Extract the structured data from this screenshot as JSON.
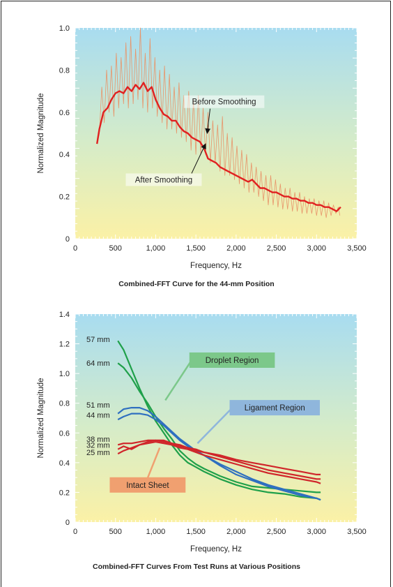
{
  "chart_data": [
    {
      "type": "line",
      "title": "Combined-FFT Curve for the 44-mm Position",
      "xlabel": "Frequency, Hz",
      "ylabel": "Normalized Magnitude",
      "xlim": [
        0,
        3500
      ],
      "ylim": [
        0,
        1.0
      ],
      "xticks": [
        "0",
        "500",
        "1,000",
        "1,500",
        "2,000",
        "2,500",
        "3,000",
        "3,500"
      ],
      "xtick_values": [
        0,
        500,
        1000,
        1500,
        2000,
        2500,
        3000,
        3500
      ],
      "yticks": [
        "0",
        "0.2",
        "0.4",
        "0.6",
        "0.8",
        "1.0"
      ],
      "ytick_values": [
        0,
        0.2,
        0.4,
        0.6,
        0.8,
        1.0
      ],
      "background": "gradient",
      "grid": false,
      "series": [
        {
          "name": "Before Smoothing",
          "color": "#e8956a",
          "x": [
            270,
            300,
            330,
            360,
            390,
            420,
            450,
            480,
            510,
            540,
            570,
            600,
            630,
            660,
            690,
            720,
            750,
            780,
            810,
            840,
            870,
            900,
            930,
            960,
            990,
            1020,
            1050,
            1080,
            1110,
            1140,
            1170,
            1200,
            1230,
            1260,
            1290,
            1320,
            1350,
            1380,
            1410,
            1440,
            1470,
            1500,
            1530,
            1560,
            1590,
            1620,
            1650,
            1680,
            1710,
            1740,
            1770,
            1800,
            1830,
            1860,
            1890,
            1920,
            1950,
            1980,
            2010,
            2040,
            2070,
            2100,
            2130,
            2160,
            2190,
            2220,
            2250,
            2280,
            2310,
            2340,
            2370,
            2400,
            2430,
            2460,
            2490,
            2520,
            2550,
            2580,
            2610,
            2640,
            2670,
            2700,
            2730,
            2760,
            2790,
            2820,
            2850,
            2880,
            2910,
            2940,
            2970,
            3000,
            3030,
            3060,
            3090,
            3120,
            3150,
            3180,
            3210,
            3240,
            3270,
            3290
          ],
          "y": [
            0.45,
            0.5,
            0.72,
            0.55,
            0.8,
            0.6,
            0.82,
            0.58,
            0.88,
            0.62,
            0.86,
            0.64,
            0.93,
            0.62,
            0.96,
            0.64,
            0.9,
            0.66,
            1.0,
            0.62,
            0.88,
            0.6,
            0.95,
            0.62,
            0.86,
            0.58,
            0.8,
            0.55,
            0.82,
            0.52,
            0.78,
            0.52,
            0.72,
            0.5,
            0.74,
            0.48,
            0.68,
            0.46,
            0.7,
            0.42,
            0.66,
            0.4,
            0.68,
            0.4,
            0.62,
            0.4,
            0.6,
            0.36,
            0.56,
            0.36,
            0.54,
            0.32,
            0.58,
            0.3,
            0.5,
            0.3,
            0.48,
            0.28,
            0.44,
            0.26,
            0.42,
            0.24,
            0.4,
            0.22,
            0.36,
            0.22,
            0.34,
            0.2,
            0.32,
            0.18,
            0.3,
            0.16,
            0.3,
            0.16,
            0.28,
            0.15,
            0.26,
            0.14,
            0.24,
            0.14,
            0.24,
            0.13,
            0.22,
            0.13,
            0.22,
            0.12,
            0.2,
            0.12,
            0.19,
            0.12,
            0.19,
            0.11,
            0.18,
            0.11,
            0.18,
            0.1,
            0.17,
            0.11,
            0.16,
            0.12,
            0.15,
            0.11
          ]
        },
        {
          "name": "After Smoothing",
          "color": "#e02020",
          "x": [
            270,
            300,
            350,
            400,
            450,
            500,
            550,
            600,
            650,
            700,
            750,
            800,
            850,
            900,
            950,
            1000,
            1050,
            1100,
            1150,
            1200,
            1250,
            1300,
            1350,
            1400,
            1450,
            1500,
            1550,
            1600,
            1650,
            1700,
            1750,
            1800,
            1850,
            1900,
            1950,
            2000,
            2050,
            2100,
            2150,
            2200,
            2250,
            2300,
            2350,
            2400,
            2450,
            2500,
            2550,
            2600,
            2650,
            2700,
            2750,
            2800,
            2850,
            2900,
            2950,
            3000,
            3050,
            3100,
            3150,
            3200,
            3250,
            3300
          ],
          "y": [
            0.45,
            0.52,
            0.6,
            0.62,
            0.66,
            0.69,
            0.7,
            0.69,
            0.72,
            0.7,
            0.73,
            0.71,
            0.74,
            0.7,
            0.72,
            0.66,
            0.62,
            0.59,
            0.58,
            0.56,
            0.56,
            0.53,
            0.51,
            0.5,
            0.48,
            0.47,
            0.46,
            0.43,
            0.38,
            0.37,
            0.36,
            0.34,
            0.33,
            0.32,
            0.31,
            0.3,
            0.29,
            0.28,
            0.27,
            0.28,
            0.26,
            0.24,
            0.24,
            0.23,
            0.22,
            0.22,
            0.21,
            0.2,
            0.2,
            0.19,
            0.19,
            0.18,
            0.18,
            0.17,
            0.17,
            0.16,
            0.16,
            0.15,
            0.15,
            0.14,
            0.13,
            0.15
          ]
        }
      ],
      "annotations": [
        {
          "text": "Before Smoothing",
          "x": 1850,
          "y": 0.64,
          "arrow_to": [
            1640,
            0.5
          ]
        },
        {
          "text": "After Smoothing",
          "x": 1100,
          "y": 0.27,
          "arrow_to": [
            1620,
            0.45
          ]
        }
      ]
    },
    {
      "type": "line",
      "title": "Combined-FFT Curves From Test Runs at Various Positions",
      "xlabel": "Frequency, Hz",
      "ylabel": "Normalized Magnitude",
      "xlim": [
        0,
        3500
      ],
      "ylim": [
        0,
        1.4
      ],
      "xticks": [
        "0",
        "500",
        "1,000",
        "1,500",
        "2,000",
        "2,500",
        "3,000",
        "3,500"
      ],
      "xtick_values": [
        0,
        500,
        1000,
        1500,
        2000,
        2500,
        3000,
        3500
      ],
      "yticks": [
        "0",
        "0.2",
        "0.4",
        "0.6",
        "0.8",
        "1.0",
        "1.2",
        "1.4"
      ],
      "ytick_values": [
        0,
        0.2,
        0.4,
        0.6,
        0.8,
        1.0,
        1.2,
        1.4
      ],
      "background": "gradient",
      "grid": false,
      "series": [
        {
          "name": "57 mm",
          "color": "#1fa04a",
          "x": [
            530,
            600,
            700,
            800,
            900,
            1000,
            1100,
            1200,
            1300,
            1400,
            1500,
            1600,
            1800,
            2000,
            2200,
            2400,
            2600,
            2800,
            3000,
            3050
          ],
          "y": [
            1.22,
            1.16,
            1.03,
            0.9,
            0.78,
            0.68,
            0.6,
            0.52,
            0.45,
            0.4,
            0.37,
            0.34,
            0.29,
            0.25,
            0.22,
            0.2,
            0.19,
            0.17,
            0.16,
            0.15
          ]
        },
        {
          "name": "64 mm",
          "color": "#1fa04a",
          "x": [
            530,
            600,
            700,
            800,
            900,
            1000,
            1100,
            1200,
            1300,
            1400,
            1500,
            1600,
            1800,
            2000,
            2200,
            2400,
            2600,
            2800,
            3000,
            3050
          ],
          "y": [
            1.07,
            1.04,
            0.97,
            0.88,
            0.8,
            0.71,
            0.63,
            0.56,
            0.48,
            0.43,
            0.39,
            0.36,
            0.31,
            0.27,
            0.24,
            0.23,
            0.22,
            0.21,
            0.2,
            0.2
          ]
        },
        {
          "name": "51 mm",
          "color": "#2e6fc0",
          "x": [
            530,
            600,
            700,
            800,
            900,
            1000,
            1100,
            1200,
            1300,
            1400,
            1500,
            1600,
            1800,
            2000,
            2200,
            2400,
            2600,
            2800,
            3000,
            3050
          ],
          "y": [
            0.73,
            0.76,
            0.77,
            0.77,
            0.75,
            0.71,
            0.66,
            0.61,
            0.56,
            0.52,
            0.48,
            0.45,
            0.39,
            0.34,
            0.29,
            0.25,
            0.22,
            0.19,
            0.16,
            0.15
          ]
        },
        {
          "name": "44 mm",
          "color": "#2e6fc0",
          "x": [
            530,
            600,
            700,
            800,
            900,
            1000,
            1100,
            1200,
            1300,
            1400,
            1500,
            1600,
            1800,
            2000,
            2200,
            2400,
            2600,
            2800,
            3000,
            3050
          ],
          "y": [
            0.69,
            0.71,
            0.73,
            0.73,
            0.72,
            0.69,
            0.65,
            0.6,
            0.55,
            0.51,
            0.48,
            0.45,
            0.38,
            0.32,
            0.28,
            0.24,
            0.21,
            0.18,
            0.16,
            0.15
          ]
        },
        {
          "name": "38 mm",
          "color": "#d0252a",
          "x": [
            530,
            600,
            700,
            800,
            900,
            1000,
            1100,
            1200,
            1300,
            1400,
            1500,
            1600,
            1800,
            2000,
            2200,
            2400,
            2600,
            2800,
            3000,
            3050
          ],
          "y": [
            0.52,
            0.53,
            0.53,
            0.54,
            0.55,
            0.55,
            0.54,
            0.53,
            0.52,
            0.5,
            0.49,
            0.47,
            0.45,
            0.42,
            0.4,
            0.38,
            0.36,
            0.34,
            0.32,
            0.32
          ]
        },
        {
          "name": "32 mm",
          "color": "#d0252a",
          "x": [
            530,
            600,
            700,
            800,
            900,
            1000,
            1100,
            1200,
            1300,
            1400,
            1500,
            1600,
            1800,
            2000,
            2200,
            2400,
            2600,
            2800,
            3000,
            3050
          ],
          "y": [
            0.49,
            0.51,
            0.49,
            0.52,
            0.54,
            0.55,
            0.55,
            0.53,
            0.51,
            0.5,
            0.48,
            0.47,
            0.44,
            0.41,
            0.38,
            0.35,
            0.33,
            0.31,
            0.29,
            0.29
          ]
        },
        {
          "name": "25 mm",
          "color": "#d0252a",
          "x": [
            530,
            600,
            700,
            800,
            900,
            1000,
            1100,
            1200,
            1300,
            1400,
            1500,
            1600,
            1800,
            2000,
            2200,
            2400,
            2600,
            2800,
            3000,
            3050
          ],
          "y": [
            0.46,
            0.48,
            0.5,
            0.52,
            0.53,
            0.54,
            0.53,
            0.52,
            0.5,
            0.49,
            0.47,
            0.45,
            0.42,
            0.39,
            0.36,
            0.33,
            0.31,
            0.29,
            0.27,
            0.26
          ]
        }
      ],
      "region_labels": [
        {
          "text": "Droplet Region",
          "color": "#7cc88a",
          "x": 1950,
          "y": 1.09,
          "arrow_to": [
            1120,
            0.82
          ]
        },
        {
          "text": "Ligament Region",
          "color": "#8fb6dc",
          "x": 2480,
          "y": 0.77,
          "arrow_to": [
            1520,
            0.53
          ]
        },
        {
          "text": "Intact Sheet",
          "color": "#f0a070",
          "x": 900,
          "y": 0.25,
          "arrow_to": [
            1050,
            0.5
          ]
        }
      ]
    }
  ]
}
